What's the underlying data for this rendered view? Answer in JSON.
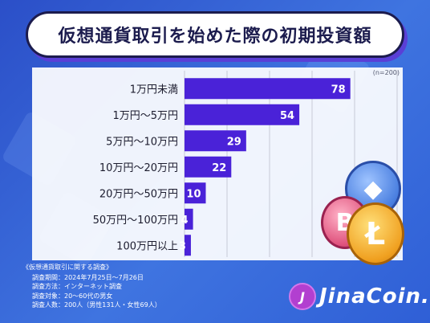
{
  "title": "仮想通貨取引を始めた際の初期投資額",
  "sample_note": "(n=200)",
  "chart_data": {
    "type": "bar",
    "orientation": "horizontal",
    "categories": [
      "1万円未満",
      "1万円〜5万円",
      "5万円〜10万円",
      "10万円〜20万円",
      "20万円〜50万円",
      "50万円〜100万円",
      "100万円以上"
    ],
    "values": [
      78,
      54,
      29,
      22,
      10,
      4,
      3
    ],
    "xlim": [
      0,
      100
    ],
    "grid": true,
    "bar_color": "#4a22d8"
  },
  "footer": {
    "survey_title": "《仮想通貨取引に関する調査》",
    "rows": [
      "調査期間：2024年7月25日〜7月26日",
      "調査方法：インターネット調査",
      "調査対象：20〜60代の男女",
      "調査人数：200人（男性131人・女性69人）"
    ]
  },
  "logo": {
    "mark": "J",
    "text": "JinaCoin."
  },
  "coins": {
    "eth_symbol": "◆",
    "btc_symbol": "B",
    "ltc_symbol": "Ł"
  }
}
